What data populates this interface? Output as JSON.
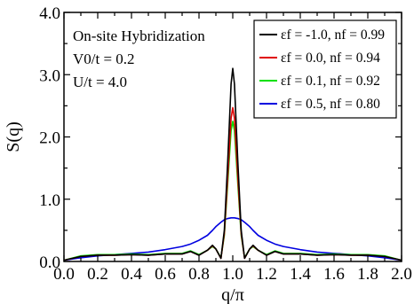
{
  "chart_data": {
    "type": "line",
    "xlabel": "q/π",
    "ylabel": "S(q)",
    "xlim": [
      0.0,
      2.0
    ],
    "ylim": [
      0.0,
      4.0
    ],
    "x_ticks": [
      "0.0",
      "0.2",
      "0.4",
      "0.6",
      "0.8",
      "1.0",
      "1.2",
      "1.4",
      "1.6",
      "1.8",
      "2.0"
    ],
    "y_ticks": [
      "0.0",
      "1.0",
      "2.0",
      "3.0",
      "4.0"
    ],
    "grid": false,
    "legend_position": "top-right",
    "annotations": [
      "On-site Hybridization",
      "V0/t = 0.2",
      "U/t = 4.0"
    ],
    "x": [
      0.0,
      0.1,
      0.2,
      0.3,
      0.4,
      0.5,
      0.6,
      0.7,
      0.75,
      0.8,
      0.85,
      0.88,
      0.9,
      0.93,
      0.95,
      0.97,
      0.99,
      1.0,
      1.01,
      1.03,
      1.05,
      1.07,
      1.1,
      1.12,
      1.15,
      1.2,
      1.25,
      1.3,
      1.4,
      1.5,
      1.6,
      1.7,
      1.8,
      1.9,
      2.0
    ],
    "series": [
      {
        "name": "εf = -1.0, nf = 0.99",
        "color": "#000000",
        "values": [
          0.02,
          0.08,
          0.1,
          0.1,
          0.11,
          0.1,
          0.12,
          0.12,
          0.16,
          0.1,
          0.18,
          0.26,
          0.2,
          0.05,
          0.5,
          1.6,
          2.85,
          3.1,
          2.85,
          1.6,
          0.5,
          0.05,
          0.2,
          0.26,
          0.18,
          0.1,
          0.16,
          0.12,
          0.12,
          0.1,
          0.11,
          0.1,
          0.1,
          0.08,
          0.02
        ]
      },
      {
        "name": "εf = 0.0, nf = 0.94",
        "color": "#e00000",
        "values": [
          0.02,
          0.08,
          0.1,
          0.1,
          0.11,
          0.1,
          0.12,
          0.12,
          0.16,
          0.1,
          0.18,
          0.25,
          0.2,
          0.05,
          0.45,
          1.35,
          2.3,
          2.47,
          2.3,
          1.35,
          0.45,
          0.05,
          0.2,
          0.25,
          0.18,
          0.1,
          0.16,
          0.12,
          0.12,
          0.1,
          0.11,
          0.1,
          0.1,
          0.08,
          0.02
        ]
      },
      {
        "name": "εf = 0.1, nf = 0.92",
        "color": "#00e000",
        "values": [
          0.02,
          0.09,
          0.11,
          0.11,
          0.12,
          0.11,
          0.13,
          0.13,
          0.17,
          0.11,
          0.18,
          0.24,
          0.2,
          0.06,
          0.42,
          1.25,
          2.1,
          2.25,
          2.1,
          1.25,
          0.42,
          0.06,
          0.2,
          0.24,
          0.18,
          0.11,
          0.17,
          0.13,
          0.13,
          0.11,
          0.12,
          0.11,
          0.11,
          0.09,
          0.02
        ]
      },
      {
        "name": "εf = 0.5, nf = 0.80",
        "color": "#0000e0",
        "values": [
          0.02,
          0.06,
          0.09,
          0.11,
          0.13,
          0.15,
          0.19,
          0.24,
          0.28,
          0.34,
          0.42,
          0.5,
          0.56,
          0.63,
          0.67,
          0.69,
          0.7,
          0.7,
          0.7,
          0.69,
          0.67,
          0.63,
          0.56,
          0.5,
          0.42,
          0.34,
          0.28,
          0.24,
          0.19,
          0.15,
          0.13,
          0.11,
          0.09,
          0.06,
          0.02
        ]
      }
    ]
  }
}
